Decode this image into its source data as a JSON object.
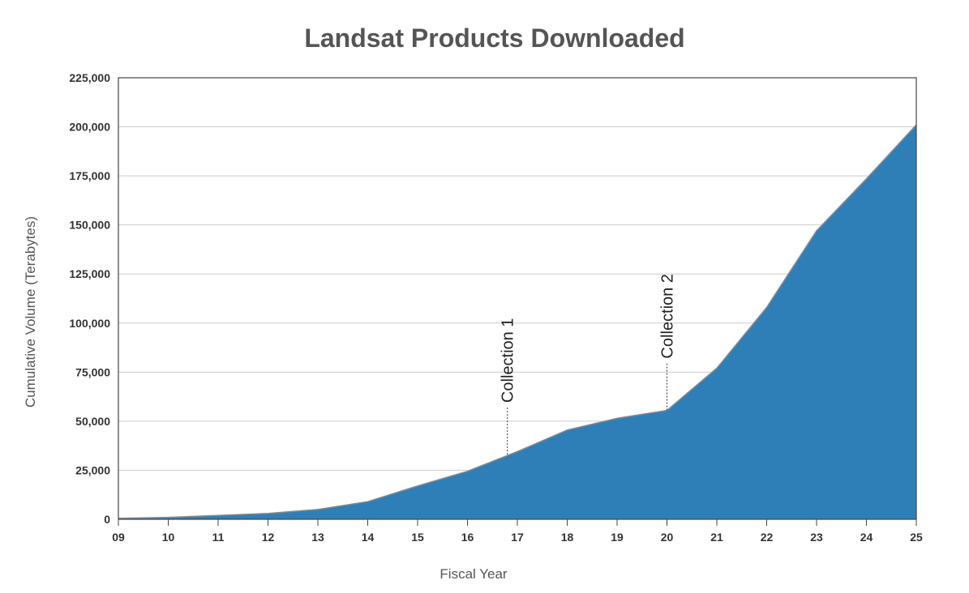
{
  "chart_data": {
    "type": "area",
    "title": "Landsat Products Downloaded",
    "xlabel": "Fiscal Year",
    "ylabel": "Cumulative Volume (Terabytes)",
    "x_tick_labels": [
      "09",
      "10",
      "11",
      "12",
      "13",
      "14",
      "15",
      "16",
      "17",
      "18",
      "19",
      "20",
      "21",
      "22",
      "23",
      "24",
      "25"
    ],
    "y_tick_labels": [
      "0",
      "25,000",
      "50,000",
      "75,000",
      "100,000",
      "125,000",
      "150,000",
      "175,000",
      "200,000",
      "225,000"
    ],
    "y_ticks": [
      0,
      25000,
      50000,
      75000,
      100000,
      125000,
      150000,
      175000,
      200000,
      225000
    ],
    "xlim": [
      9,
      25
    ],
    "ylim": [
      0,
      225000
    ],
    "grid": true,
    "legend": "none",
    "fill_color": "#2e7fb8",
    "line_color": "#8a8a8a",
    "series": [
      {
        "x": [
          9,
          10,
          11,
          12,
          13,
          14,
          15,
          16,
          17,
          18,
          19,
          20,
          21,
          22,
          23,
          24,
          25
        ],
        "values": [
          500,
          1000,
          2000,
          3000,
          5000,
          9000,
          17000,
          24500,
          34500,
          45500,
          51500,
          55500,
          77000,
          108000,
          147000,
          173500,
          201000
        ]
      }
    ],
    "annotations": [
      {
        "text": "Collection 1",
        "x": 16.8,
        "y": 33000
      },
      {
        "text": "Collection 2",
        "x": 20.0,
        "y": 55500
      }
    ]
  }
}
